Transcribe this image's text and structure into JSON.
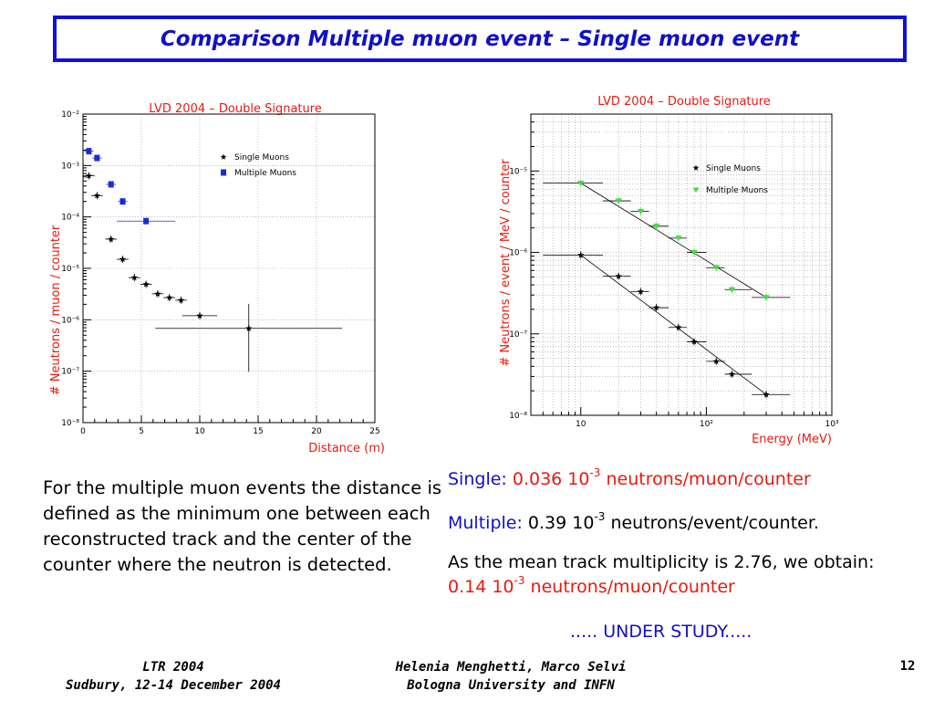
{
  "slide": {
    "title": "Comparison  Multiple muon event – Single muon event",
    "description": "For the multiple muon events the distance is defined as the minimum one between each reconstructed track and the center of the counter where the neutron is detected.",
    "single_label": "Single:",
    "single_coef": "0.036 10",
    "single_exp": "-3",
    "single_unit": " neutrons/muon/counter",
    "multiple_label": "Multiple:",
    "multiple_coef": " 0.39 10",
    "multiple_exp": "-3",
    "multiple_unit": " neutrons/event/counter.",
    "mean_text_1": "As the mean track multiplicity is 2.76, we obtain: ",
    "mean_coef": "0.14 10",
    "mean_exp": "-3",
    "mean_unit": " neutrons/muon/counter",
    "under_study": "..... UNDER STUDY.....",
    "footer_left_1": "LTR 2004",
    "footer_left_2": "Sudbury, 12-14 December 2004",
    "footer_center_1": "Helenia Menghetti, Marco Selvi",
    "footer_center_2": "Bologna University and INFN",
    "page_number": "12"
  },
  "chart_data": [
    {
      "type": "scatter",
      "title": "LVD 2004 – Double Signature",
      "xlabel": "Distance (m)",
      "ylabel": "# Neutrons / muon / counter",
      "xlim": [
        0,
        25
      ],
      "ylim": [
        1e-08,
        0.01
      ],
      "yscale": "log",
      "xticks": [
        "0",
        "5",
        "10",
        "15",
        "20",
        "25"
      ],
      "yticks": [
        "10⁻⁸",
        "10⁻⁷",
        "10⁻⁶",
        "10⁻⁵",
        "10⁻⁴",
        "10⁻³",
        "10⁻²"
      ],
      "grid": true,
      "legend": "top-right",
      "series": [
        {
          "name": "Single Muons",
          "color": "#000000",
          "marker": "star",
          "x": [
            0.5,
            1.2,
            2.4,
            3.4,
            4.4,
            5.4,
            6.4,
            7.4,
            8.4,
            10.0,
            14.2
          ],
          "y": [
            0.00063,
            0.00026,
            3.7e-05,
            1.5e-05,
            6.6e-06,
            4.9e-06,
            3.2e-06,
            2.7e-06,
            2.4e-06,
            1.2e-06,
            6.8e-07
          ],
          "xerr": [
            0.5,
            0.5,
            0.5,
            0.5,
            0.5,
            0.5,
            0.5,
            0.5,
            0.5,
            1.5,
            8.0
          ]
        },
        {
          "name": "Multiple Muons",
          "color": "#1a2cd8",
          "marker": "square",
          "x": [
            0.5,
            1.2,
            2.4,
            3.4,
            5.4
          ],
          "y": [
            0.0019,
            0.0014,
            0.00043,
            0.0002,
            8.3e-05
          ],
          "xerr": [
            0.4,
            0.4,
            0.4,
            0.4,
            2.5
          ]
        }
      ]
    },
    {
      "type": "scatter",
      "title": "LVD 2004 – Double Signature",
      "xlabel": "Energy (MeV)",
      "ylabel": "# Neutrons / event / MeV / counter",
      "xscale": "log",
      "yscale": "log",
      "xlim": [
        4,
        1000
      ],
      "ylim": [
        1e-08,
        5e-05
      ],
      "xticks": [
        "10",
        "10²",
        "10³"
      ],
      "yticks": [
        "10⁻⁸",
        "10⁻⁷",
        "10⁻⁶",
        "10⁻⁵"
      ],
      "grid": true,
      "legend": "top-right",
      "series": [
        {
          "name": "Single Muons",
          "color": "#000000",
          "marker": "star",
          "x": [
            10,
            20,
            30,
            40,
            60,
            80,
            120,
            160,
            300
          ],
          "y": [
            9.3e-07,
            5.1e-07,
            3.3e-07,
            2.1e-07,
            1.2e-07,
            8e-08,
            4.6e-08,
            3.2e-08,
            1.8e-08
          ],
          "trend": [
            [
              10,
              9.3e-07
            ],
            [
              300,
              1.8e-08
            ]
          ]
        },
        {
          "name": "Multiple Muons",
          "color": "#44dd44",
          "marker": "triangle-down",
          "x": [
            10,
            20,
            30,
            40,
            60,
            80,
            120,
            160,
            300
          ],
          "y": [
            7.1e-06,
            4.3e-06,
            3.2e-06,
            2.1e-06,
            1.5e-06,
            1e-06,
            6.5e-07,
            3.5e-07,
            2.8e-07
          ],
          "trend": [
            [
              10,
              7.1e-06
            ],
            [
              300,
              2.8e-07
            ]
          ]
        }
      ]
    }
  ]
}
